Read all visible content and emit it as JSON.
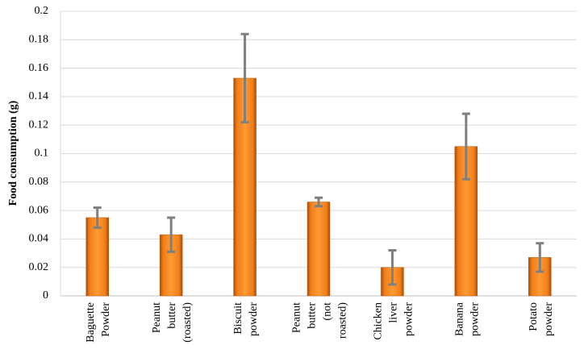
{
  "chart_data": {
    "type": "bar",
    "y_label": "Food consumption  (g)",
    "categories": [
      "Baguette Powder",
      "Peanut butter (roasted)",
      "Biscuit powder",
      "Peanut butter (not roasted)",
      "Chicken liver powder",
      "Banana powder",
      "Potato powder"
    ],
    "values": [
      0.055,
      0.043,
      0.153,
      0.066,
      0.02,
      0.105,
      0.027
    ],
    "errors": [
      0.007,
      0.012,
      0.031,
      0.003,
      0.012,
      0.023,
      0.01
    ],
    "color": "#f7871f",
    "error_color": "#7f7f7f",
    "ylim": [
      0,
      0.2
    ],
    "yticks": [
      0,
      0.02,
      0.04,
      0.06,
      0.08,
      0.1,
      0.12,
      0.14,
      0.16,
      0.18,
      0.2
    ],
    "grid": true
  }
}
